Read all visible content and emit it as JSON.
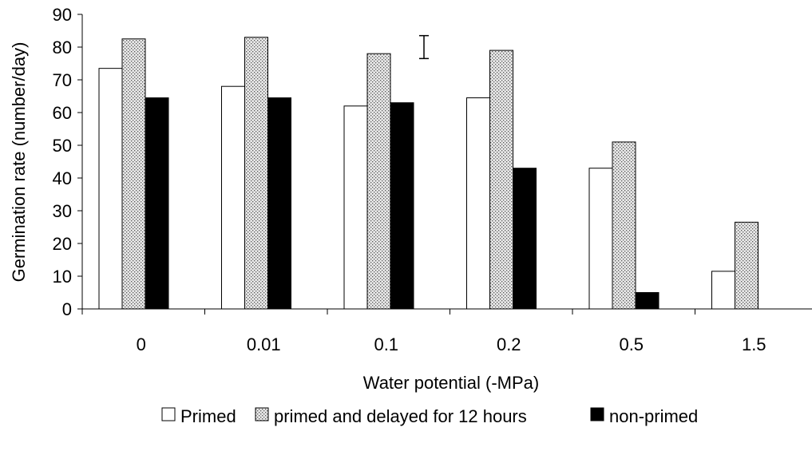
{
  "chart_data": {
    "type": "bar",
    "title": "",
    "xlabel": "Water potential (-MPa)",
    "ylabel": "Germination rate (number/day)",
    "ylim": [
      0,
      90
    ],
    "yticks": [
      "0",
      "10",
      "20",
      "30",
      "40",
      "50",
      "60",
      "70",
      "80",
      "90"
    ],
    "categories": [
      "0",
      "0.01",
      "0.1",
      "0.2",
      "0.5",
      "1.5"
    ],
    "series": [
      {
        "name": "Primed",
        "pattern": "white",
        "values": [
          73.5,
          68,
          62,
          64.5,
          43,
          11.5
        ]
      },
      {
        "name": "primed and delayed for 12 hours",
        "pattern": "dotted",
        "values": [
          82.5,
          83,
          78,
          79,
          51,
          26.5
        ]
      },
      {
        "name": "non-primed",
        "pattern": "black",
        "values": [
          64.5,
          64.5,
          63,
          43,
          5,
          0
        ]
      }
    ],
    "error_bar": {
      "low": 76.5,
      "high": 83.5,
      "placement": "between 0.1 and 0.2 groups"
    },
    "grid": false,
    "legend_position": "bottom"
  },
  "colors": {
    "white": "#ffffff",
    "dotted_bg": "#e8e8e8",
    "dotted_fg": "#555555",
    "black": "#000000"
  }
}
